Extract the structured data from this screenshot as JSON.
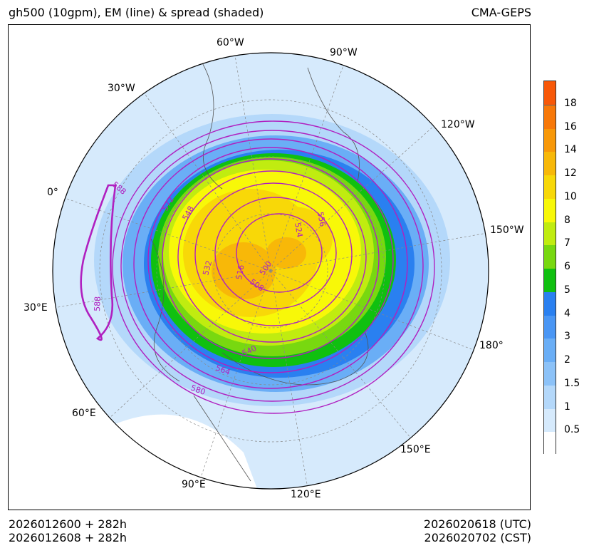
{
  "header": {
    "title": "gh500 (10gpm), EM (line) & spread (shaded)",
    "source": "CMA-GEPS"
  },
  "footer": {
    "init_utc": "2026012600 + 282h",
    "init_cst": "2026012608 + 282h",
    "valid_utc": "2026020618 (UTC)",
    "valid_cst": "2026020702 (CST)"
  },
  "map": {
    "projection": "polar stereographic (north)",
    "longitude_labels": [
      "60°W",
      "90°W",
      "30°W",
      "120°W",
      "0°",
      "150°W",
      "30°E",
      "180°",
      "60°E",
      "150°E",
      "90°E",
      "120°E"
    ],
    "contour_color": "#b020c0",
    "contour_labels": [
      "588",
      "572",
      "548",
      "556",
      "524",
      "532",
      "516",
      "500",
      "508",
      "540",
      "564",
      "580",
      "588"
    ]
  },
  "colorbar": {
    "levels": [
      "0.5",
      "1",
      "1.5",
      "2",
      "3",
      "4",
      "5",
      "6",
      "7",
      "8",
      "10",
      "12",
      "14",
      "16",
      "18"
    ],
    "colors": [
      "#ffffff",
      "#d6eafc",
      "#b4d8fa",
      "#8cc2f8",
      "#6aaef6",
      "#4a96f4",
      "#2a80f0",
      "#10c010",
      "#78d810",
      "#c0ec10",
      "#f8f808",
      "#f8d808",
      "#f8b808",
      "#f89808",
      "#f87808",
      "#f85808"
    ]
  }
}
